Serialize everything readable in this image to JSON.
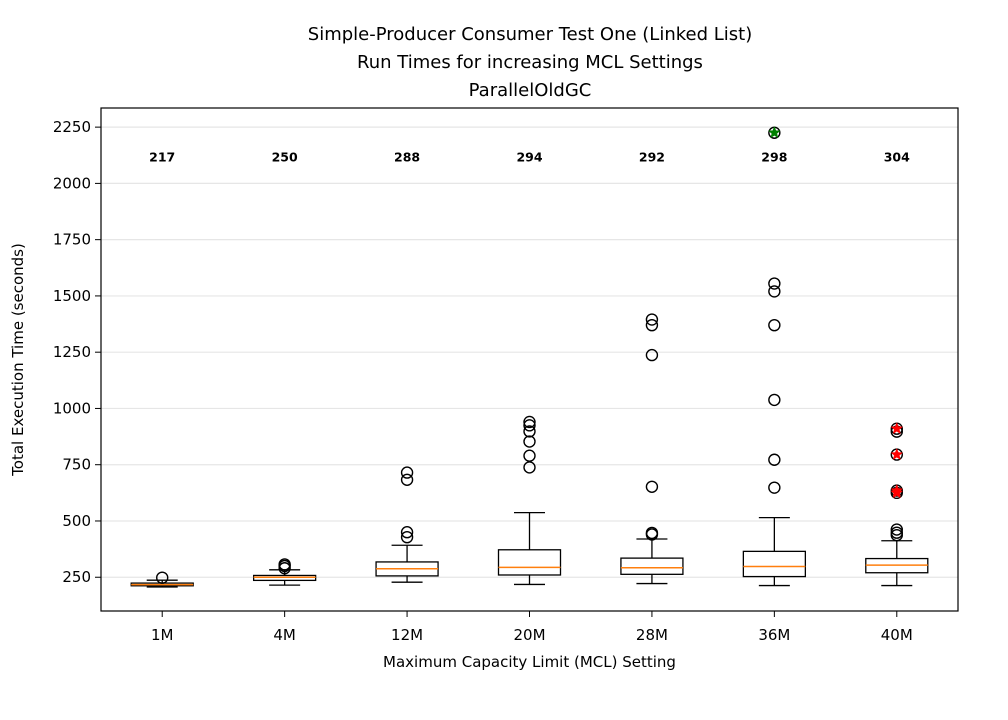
{
  "chart_data": {
    "type": "box",
    "title_lines": [
      "Simple-Producer Consumer Test One (Linked List)",
      "Run Times for increasing MCL Settings",
      "ParallelOldGC"
    ],
    "xlabel": "Maximum Capacity Limit (MCL) Setting",
    "ylabel": "Total Execution Time (seconds)",
    "ylim": [
      100,
      2335
    ],
    "yticks": [
      250,
      500,
      750,
      1000,
      1250,
      1500,
      1750,
      2000,
      2250
    ],
    "ytick_labels": [
      "250",
      "500",
      "750",
      "1000",
      "1250",
      "1500",
      "1750",
      "2000",
      "2250"
    ],
    "grid": "horizontal",
    "colors": {
      "median_line": "#ff7f0e",
      "box_edge": "#000000",
      "grid": "#e6e6e6",
      "highlight_red": "#ff0000",
      "highlight_green": "#008000"
    },
    "categories": [
      "1M",
      "4M",
      "12M",
      "20M",
      "28M",
      "36M",
      "40M"
    ],
    "median_labels": [
      "217",
      "250",
      "288",
      "294",
      "292",
      "298",
      "304"
    ],
    "median_label_y": 2120,
    "boxes": [
      {
        "category": "1M",
        "whislo": 207,
        "q1": 212,
        "med": 217,
        "q3": 224,
        "whishi": 237,
        "fliers": [
          248
        ]
      },
      {
        "category": "4M",
        "whislo": 215,
        "q1": 236,
        "med": 250,
        "q3": 258,
        "whishi": 283,
        "fliers": [
          290,
          300,
          307
        ]
      },
      {
        "category": "12M",
        "whislo": 228,
        "q1": 256,
        "med": 288,
        "q3": 318,
        "whishi": 392,
        "fliers": [
          428,
          450,
          683,
          715
        ]
      },
      {
        "category": "20M",
        "whislo": 218,
        "q1": 260,
        "med": 294,
        "q3": 372,
        "whishi": 537,
        "fliers": [
          738,
          790,
          853,
          898,
          925,
          940
        ]
      },
      {
        "category": "28M",
        "whislo": 222,
        "q1": 263,
        "med": 292,
        "q3": 335,
        "whishi": 420,
        "fliers": [
          440,
          447,
          652,
          1237,
          1370,
          1395
        ]
      },
      {
        "category": "36M",
        "whislo": 213,
        "q1": 253,
        "med": 298,
        "q3": 365,
        "whishi": 515,
        "fliers": [
          648,
          772,
          1038,
          1370,
          1520,
          1555,
          2225
        ]
      },
      {
        "category": "40M",
        "whislo": 213,
        "q1": 270,
        "med": 304,
        "q3": 333,
        "whishi": 412,
        "fliers": [
          437,
          448,
          462,
          625,
          635,
          795,
          897,
          910
        ]
      }
    ],
    "highlighted_points": [
      {
        "category": "36M",
        "value": 2225,
        "color": "#008000"
      },
      {
        "category": "40M",
        "value": 910,
        "color": "#ff0000"
      },
      {
        "category": "40M",
        "value": 795,
        "color": "#ff0000"
      },
      {
        "category": "40M",
        "value": 635,
        "color": "#ff0000"
      },
      {
        "category": "40M",
        "value": 625,
        "color": "#ff0000"
      }
    ]
  }
}
